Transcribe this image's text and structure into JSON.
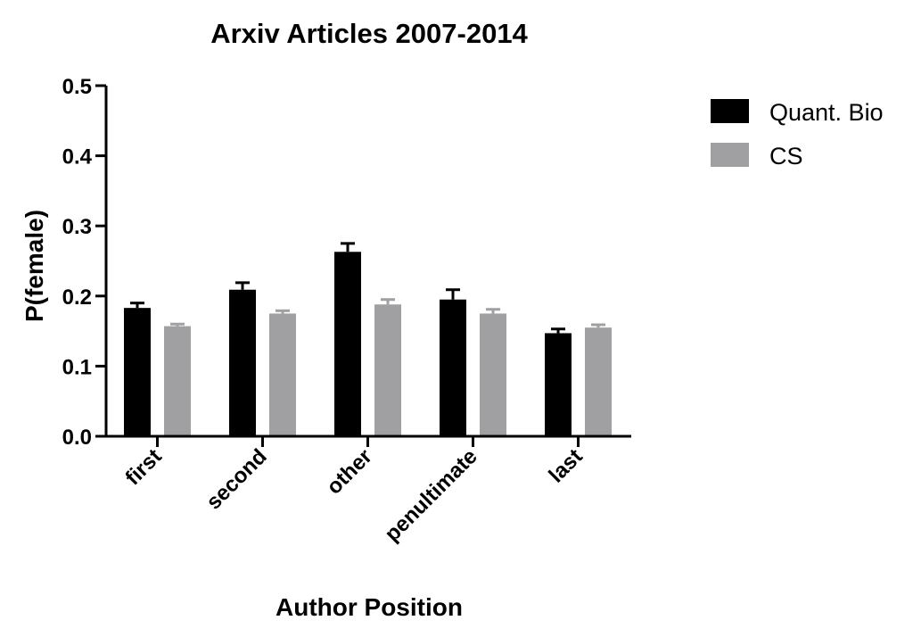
{
  "chart_data": {
    "type": "bar",
    "title": "Arxiv Articles 2007-2014",
    "xlabel": "Author Position",
    "ylabel": "P(female)",
    "ylim": [
      0,
      0.5
    ],
    "yticks": [
      "0.0",
      "0.1",
      "0.2",
      "0.3",
      "0.4",
      "0.5"
    ],
    "categories": [
      "first",
      "second",
      "other",
      "penultimate",
      "last"
    ],
    "series": [
      {
        "name": "Quant. Bio",
        "color": "#000000",
        "values": [
          0.183,
          0.209,
          0.263,
          0.195,
          0.147
        ],
        "errors": [
          0.007,
          0.01,
          0.012,
          0.014,
          0.006
        ]
      },
      {
        "name": "CS",
        "color": "#a0a0a3",
        "values": [
          0.157,
          0.175,
          0.188,
          0.175,
          0.155
        ],
        "errors": [
          0.003,
          0.004,
          0.007,
          0.006,
          0.004
        ]
      }
    ],
    "grid": false,
    "legend_position": "top-right"
  }
}
